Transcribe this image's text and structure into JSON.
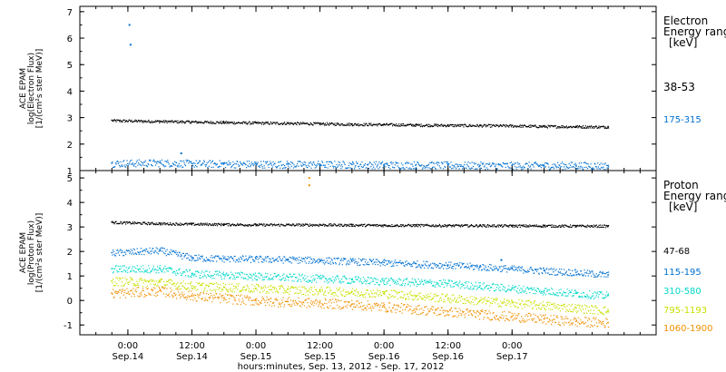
{
  "chart_data": [
    {
      "type": "scatter",
      "panel": "electron",
      "ylabel_lines": [
        "ACE EPAM",
        "log(Electron Flux)",
        "[1/(cm²s ster MeV)]"
      ],
      "ylim": [
        1.0,
        7.2
      ],
      "yticks": [
        1,
        2,
        3,
        4,
        5,
        6,
        7
      ],
      "xlim_hours": [
        -9,
        99
      ],
      "legend_title": [
        "Electron",
        "Energy range",
        "[keV]"
      ],
      "series": [
        {
          "name": "38-53",
          "color": "#000000",
          "x": [
            -3,
            6,
            12,
            18,
            24,
            30,
            36,
            42,
            48,
            54,
            60,
            66,
            72,
            78,
            84,
            90
          ],
          "y": [
            2.9,
            2.87,
            2.85,
            2.83,
            2.81,
            2.8,
            2.78,
            2.76,
            2.75,
            2.73,
            2.72,
            2.71,
            2.7,
            2.68,
            2.67,
            2.66
          ]
        },
        {
          "name": "175-315",
          "color": "#0070d0",
          "x": [
            -3,
            6,
            12,
            18,
            24,
            30,
            36,
            42,
            48,
            54,
            60,
            66,
            72,
            78,
            84,
            90
          ],
          "y": [
            1.28,
            1.3,
            1.27,
            1.26,
            1.25,
            1.24,
            1.24,
            1.23,
            1.22,
            1.22,
            1.21,
            1.2,
            1.2,
            1.2,
            1.2,
            1.19
          ]
        }
      ],
      "outliers": [
        {
          "x": 0.3,
          "y": 6.5,
          "color": "#0070d0"
        },
        {
          "x": 0.5,
          "y": 5.75,
          "color": "#0070d0"
        },
        {
          "x": 10,
          "y": 1.65,
          "color": "#0070d0"
        }
      ]
    },
    {
      "type": "scatter",
      "panel": "proton",
      "ylabel_lines": [
        "ACE EPAM",
        "log(Proton Flux)",
        "[1/(cm²s ster MeV)]"
      ],
      "ylim": [
        -1.4,
        5.3
      ],
      "yticks": [
        -1,
        0,
        1,
        2,
        3,
        4,
        5
      ],
      "xlim_hours": [
        -9,
        99
      ],
      "legend_title": [
        "Proton",
        "Energy range",
        "[keV]"
      ],
      "series": [
        {
          "name": "47-68",
          "color": "#000000",
          "x": [
            -3,
            6,
            12,
            18,
            24,
            30,
            36,
            42,
            48,
            54,
            60,
            66,
            72,
            78,
            84,
            90
          ],
          "y": [
            3.2,
            3.15,
            3.13,
            3.12,
            3.1,
            3.1,
            3.1,
            3.09,
            3.08,
            3.08,
            3.07,
            3.07,
            3.06,
            3.06,
            3.05,
            3.05
          ]
        },
        {
          "name": "115-195",
          "color": "#0070d0",
          "x": [
            -3,
            6,
            12,
            18,
            24,
            30,
            36,
            42,
            48,
            54,
            60,
            66,
            72,
            78,
            84,
            90
          ],
          "y": [
            1.95,
            2.05,
            1.75,
            1.72,
            1.7,
            1.68,
            1.65,
            1.6,
            1.55,
            1.5,
            1.45,
            1.38,
            1.3,
            1.22,
            1.15,
            1.05
          ]
        },
        {
          "name": "310-580",
          "color": "#00d8c8",
          "x": [
            -3,
            6,
            12,
            18,
            24,
            30,
            36,
            42,
            48,
            54,
            60,
            66,
            72,
            78,
            84,
            90
          ],
          "y": [
            1.3,
            1.3,
            1.1,
            1.05,
            1.0,
            0.95,
            0.9,
            0.85,
            0.8,
            0.75,
            0.7,
            0.6,
            0.5,
            0.4,
            0.3,
            0.2
          ]
        },
        {
          "name": "795-1193",
          "color": "#c8e000",
          "x": [
            -3,
            6,
            12,
            18,
            24,
            30,
            36,
            42,
            48,
            54,
            60,
            66,
            72,
            78,
            84,
            90
          ],
          "y": [
            0.8,
            0.75,
            0.6,
            0.55,
            0.5,
            0.45,
            0.4,
            0.35,
            0.3,
            0.2,
            0.1,
            0.0,
            -0.1,
            -0.2,
            -0.3,
            -0.4
          ]
        },
        {
          "name": "1060-1900",
          "color": "#f09000",
          "x": [
            -3,
            6,
            12,
            18,
            24,
            30,
            36,
            42,
            48,
            54,
            60,
            66,
            72,
            78,
            84,
            90
          ],
          "y": [
            0.3,
            0.4,
            0.2,
            0.1,
            0.0,
            -0.05,
            -0.1,
            -0.15,
            -0.25,
            -0.35,
            -0.45,
            -0.55,
            -0.65,
            -0.75,
            -0.85,
            -0.9
          ]
        }
      ],
      "outliers": [
        {
          "x": 34,
          "y": 5.0,
          "color": "#f09000"
        },
        {
          "x": 34,
          "y": 4.7,
          "color": "#f09000"
        },
        {
          "x": 70,
          "y": 1.65,
          "color": "#0070d0"
        }
      ]
    }
  ],
  "xaxis": {
    "ticks": [
      {
        "hours": 0,
        "time": "0:00",
        "date": "Sep.14"
      },
      {
        "hours": 12,
        "time": "12:00",
        "date": "Sep.14"
      },
      {
        "hours": 24,
        "time": "0:00",
        "date": "Sep.15"
      },
      {
        "hours": 36,
        "time": "12:00",
        "date": "Sep.15"
      },
      {
        "hours": 48,
        "time": "0:00",
        "date": "Sep.16"
      },
      {
        "hours": 60,
        "time": "12:00",
        "date": "Sep.16"
      },
      {
        "hours": 72,
        "time": "0:00",
        "date": "Sep.17"
      }
    ],
    "label": "hours:minutes, Sep. 13, 2012 - Sep. 17, 2012"
  }
}
